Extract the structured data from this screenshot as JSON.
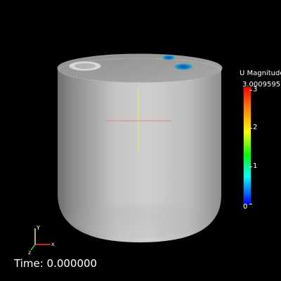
{
  "viewer": {
    "time_label": "Time: 0.000000",
    "colors": {
      "background": "#000000",
      "surface": "#b8b8b8"
    }
  },
  "colorbar": {
    "title": "U Magnitude",
    "range_max": "3.0009595",
    "ticks": [
      "3",
      "2",
      "1",
      "0"
    ],
    "colormap": [
      "#0000ff",
      "#00ffff",
      "#00ff00",
      "#ffff00",
      "#ff7f00",
      "#ff0000"
    ]
  },
  "axes": {
    "x_label": "x",
    "y_label": "Y",
    "z_label": "z",
    "colors": {
      "x": "#ff3030",
      "y": "#f0f060",
      "z": "#30d030"
    }
  },
  "icons": [
    "orientation-axes-icon",
    "center-crosshair-icon"
  ]
}
